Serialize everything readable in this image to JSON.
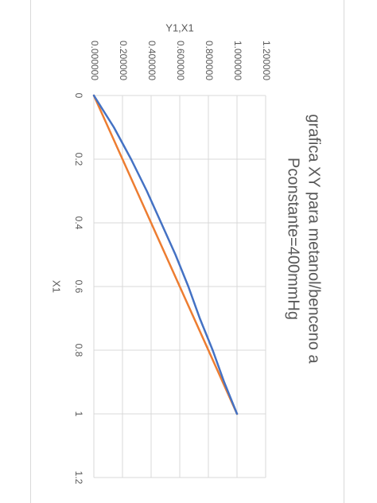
{
  "chart_data": {
    "type": "line",
    "title_lines": [
      "grafica XY para metanol/benceno a",
      "Pconstante=400mmHg"
    ],
    "xlabel": "X1",
    "ylabel": "Y1,X1",
    "xlim": [
      0,
      1.2
    ],
    "ylim": [
      0,
      1.2
    ],
    "x_ticks": [
      "0",
      "0.2",
      "0.4",
      "0.6",
      "0.8",
      "1",
      "1.2"
    ],
    "y_ticks": [
      "0.000000",
      "0.200000",
      "0.400000",
      "0.600000",
      "0.800000",
      "1.000000",
      "1.200000"
    ],
    "grid": true,
    "rotated": "90deg-clockwise",
    "series": [
      {
        "color": "#4472c4",
        "x": [
          0,
          0.1,
          0.2,
          0.3,
          0.4,
          0.5,
          0.6,
          0.7,
          0.8,
          0.9,
          1.0
        ],
        "y": [
          0,
          0.14,
          0.26,
          0.37,
          0.47,
          0.57,
          0.66,
          0.74,
          0.83,
          0.91,
          1.0
        ]
      },
      {
        "color": "#ed7d31",
        "x": [
          0,
          1.0
        ],
        "y": [
          0,
          1.0
        ]
      }
    ]
  }
}
